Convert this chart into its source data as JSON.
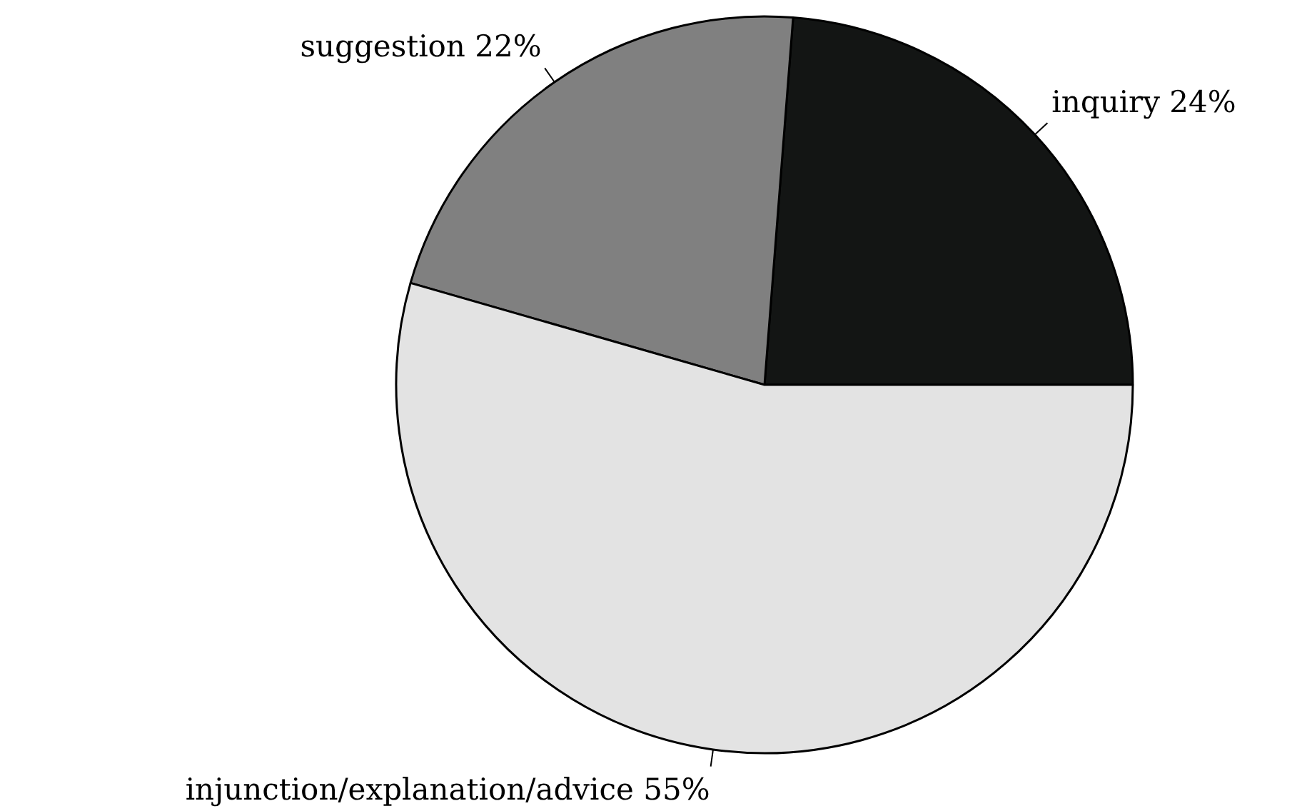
{
  "chart_data": {
    "type": "pie",
    "categories": [
      "inquiry",
      "suggestion",
      "injunction/explanation/advice"
    ],
    "values": [
      24,
      22,
      55
    ],
    "value_labels": [
      "24%",
      "22%",
      "55%"
    ],
    "colors": [
      "#131514",
      "#808080",
      "#e3e3e3"
    ]
  }
}
